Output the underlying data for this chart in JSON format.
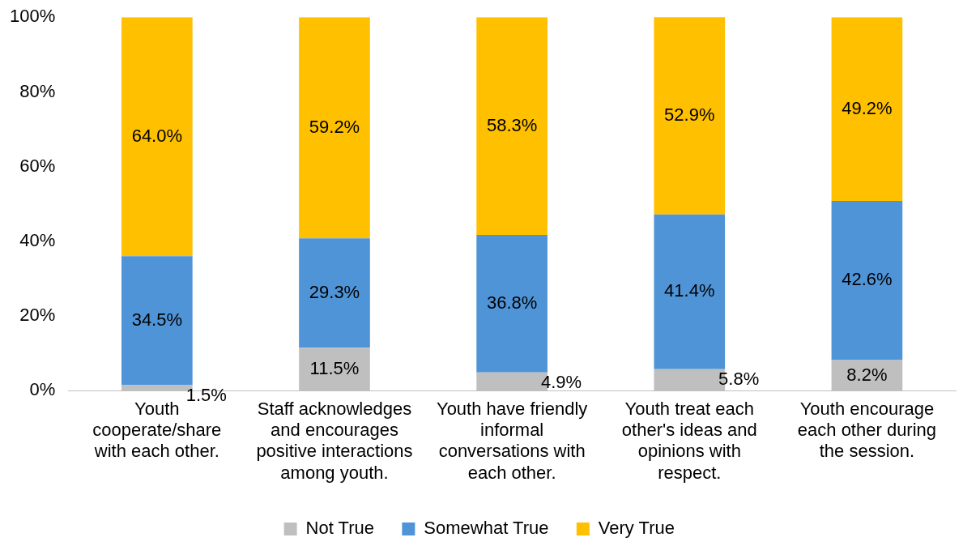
{
  "chart_data": {
    "type": "bar",
    "stacked": true,
    "categories": [
      "Youth cooperate/share with each other.",
      "Staff acknowledges and encourages positive interactions among youth.",
      "Youth have friendly informal conversations with each other.",
      "Youth treat each other's ideas and opinions with respect.",
      "Youth encourage each other during the session."
    ],
    "series": [
      {
        "name": "Not True",
        "color": "#bfbfbf",
        "values": [
          1.5,
          11.5,
          4.9,
          5.8,
          8.2
        ],
        "value_labels": [
          "1.5%",
          "11.5%",
          "4.9%",
          "5.8%",
          "8.2%"
        ]
      },
      {
        "name": "Somewhat True",
        "color": "#5094d8",
        "values": [
          34.5,
          29.3,
          36.8,
          41.4,
          42.6
        ],
        "value_labels": [
          "34.5%",
          "29.3%",
          "36.8%",
          "41.4%",
          "42.6%"
        ]
      },
      {
        "name": "Very True",
        "color": "#ffc000",
        "values": [
          64.0,
          59.2,
          58.3,
          52.9,
          49.2
        ],
        "value_labels": [
          "64.0%",
          "59.2%",
          "58.3%",
          "52.9%",
          "49.2%"
        ]
      }
    ],
    "ylim": [
      0,
      100
    ],
    "yticks": [
      {
        "value": 0,
        "label": "0%"
      },
      {
        "value": 20,
        "label": "20%"
      },
      {
        "value": 40,
        "label": "40%"
      },
      {
        "value": 60,
        "label": "60%"
      },
      {
        "value": 80,
        "label": "80%"
      },
      {
        "value": 100,
        "label": "100%"
      }
    ],
    "grid": false,
    "legend": "bottom"
  }
}
